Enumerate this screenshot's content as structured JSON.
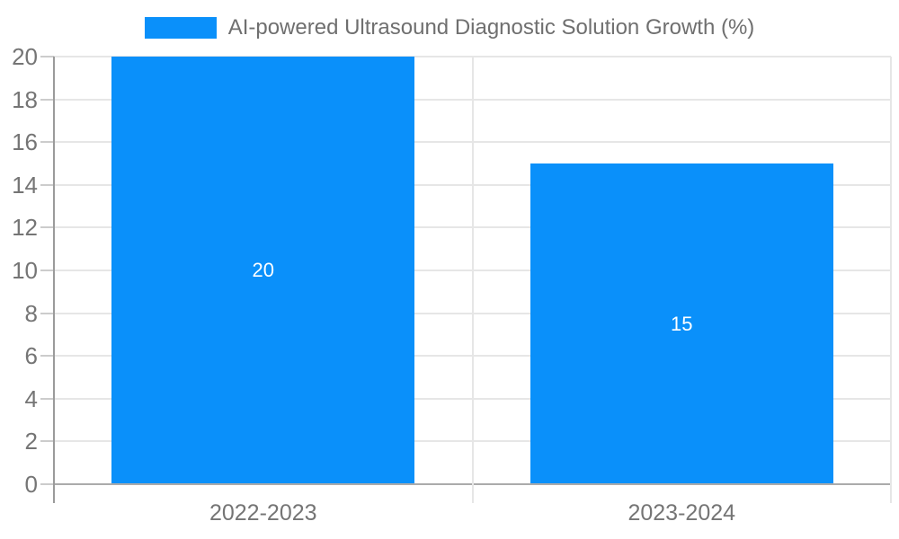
{
  "chart_data": {
    "type": "bar",
    "title": "",
    "legend": {
      "label": "AI-powered Ultrasound Diagnostic Solution Growth (%)",
      "position": "top"
    },
    "categories": [
      "2022-2023",
      "2023-2024"
    ],
    "series": [
      {
        "name": "AI-powered Ultrasound Diagnostic Solution Growth (%)",
        "values": [
          20,
          15
        ]
      }
    ],
    "value_labels": [
      "20",
      "15"
    ],
    "xlabel": "",
    "ylabel": "",
    "ylim": [
      0,
      20
    ],
    "ytick_step": 2,
    "yticks": [
      0,
      2,
      4,
      6,
      8,
      10,
      12,
      14,
      16,
      18,
      20
    ],
    "grid": true,
    "colors": {
      "bar": "#0a90fa",
      "value_label": "#ffffff",
      "axis_label": "#757575",
      "legend_text": "#6f6f6f",
      "gridline": "#e6e6e6",
      "baseline": "#ababab",
      "axis_line": "#9b9b9b",
      "tick": "#cccccc",
      "background": "#ffffff"
    }
  }
}
